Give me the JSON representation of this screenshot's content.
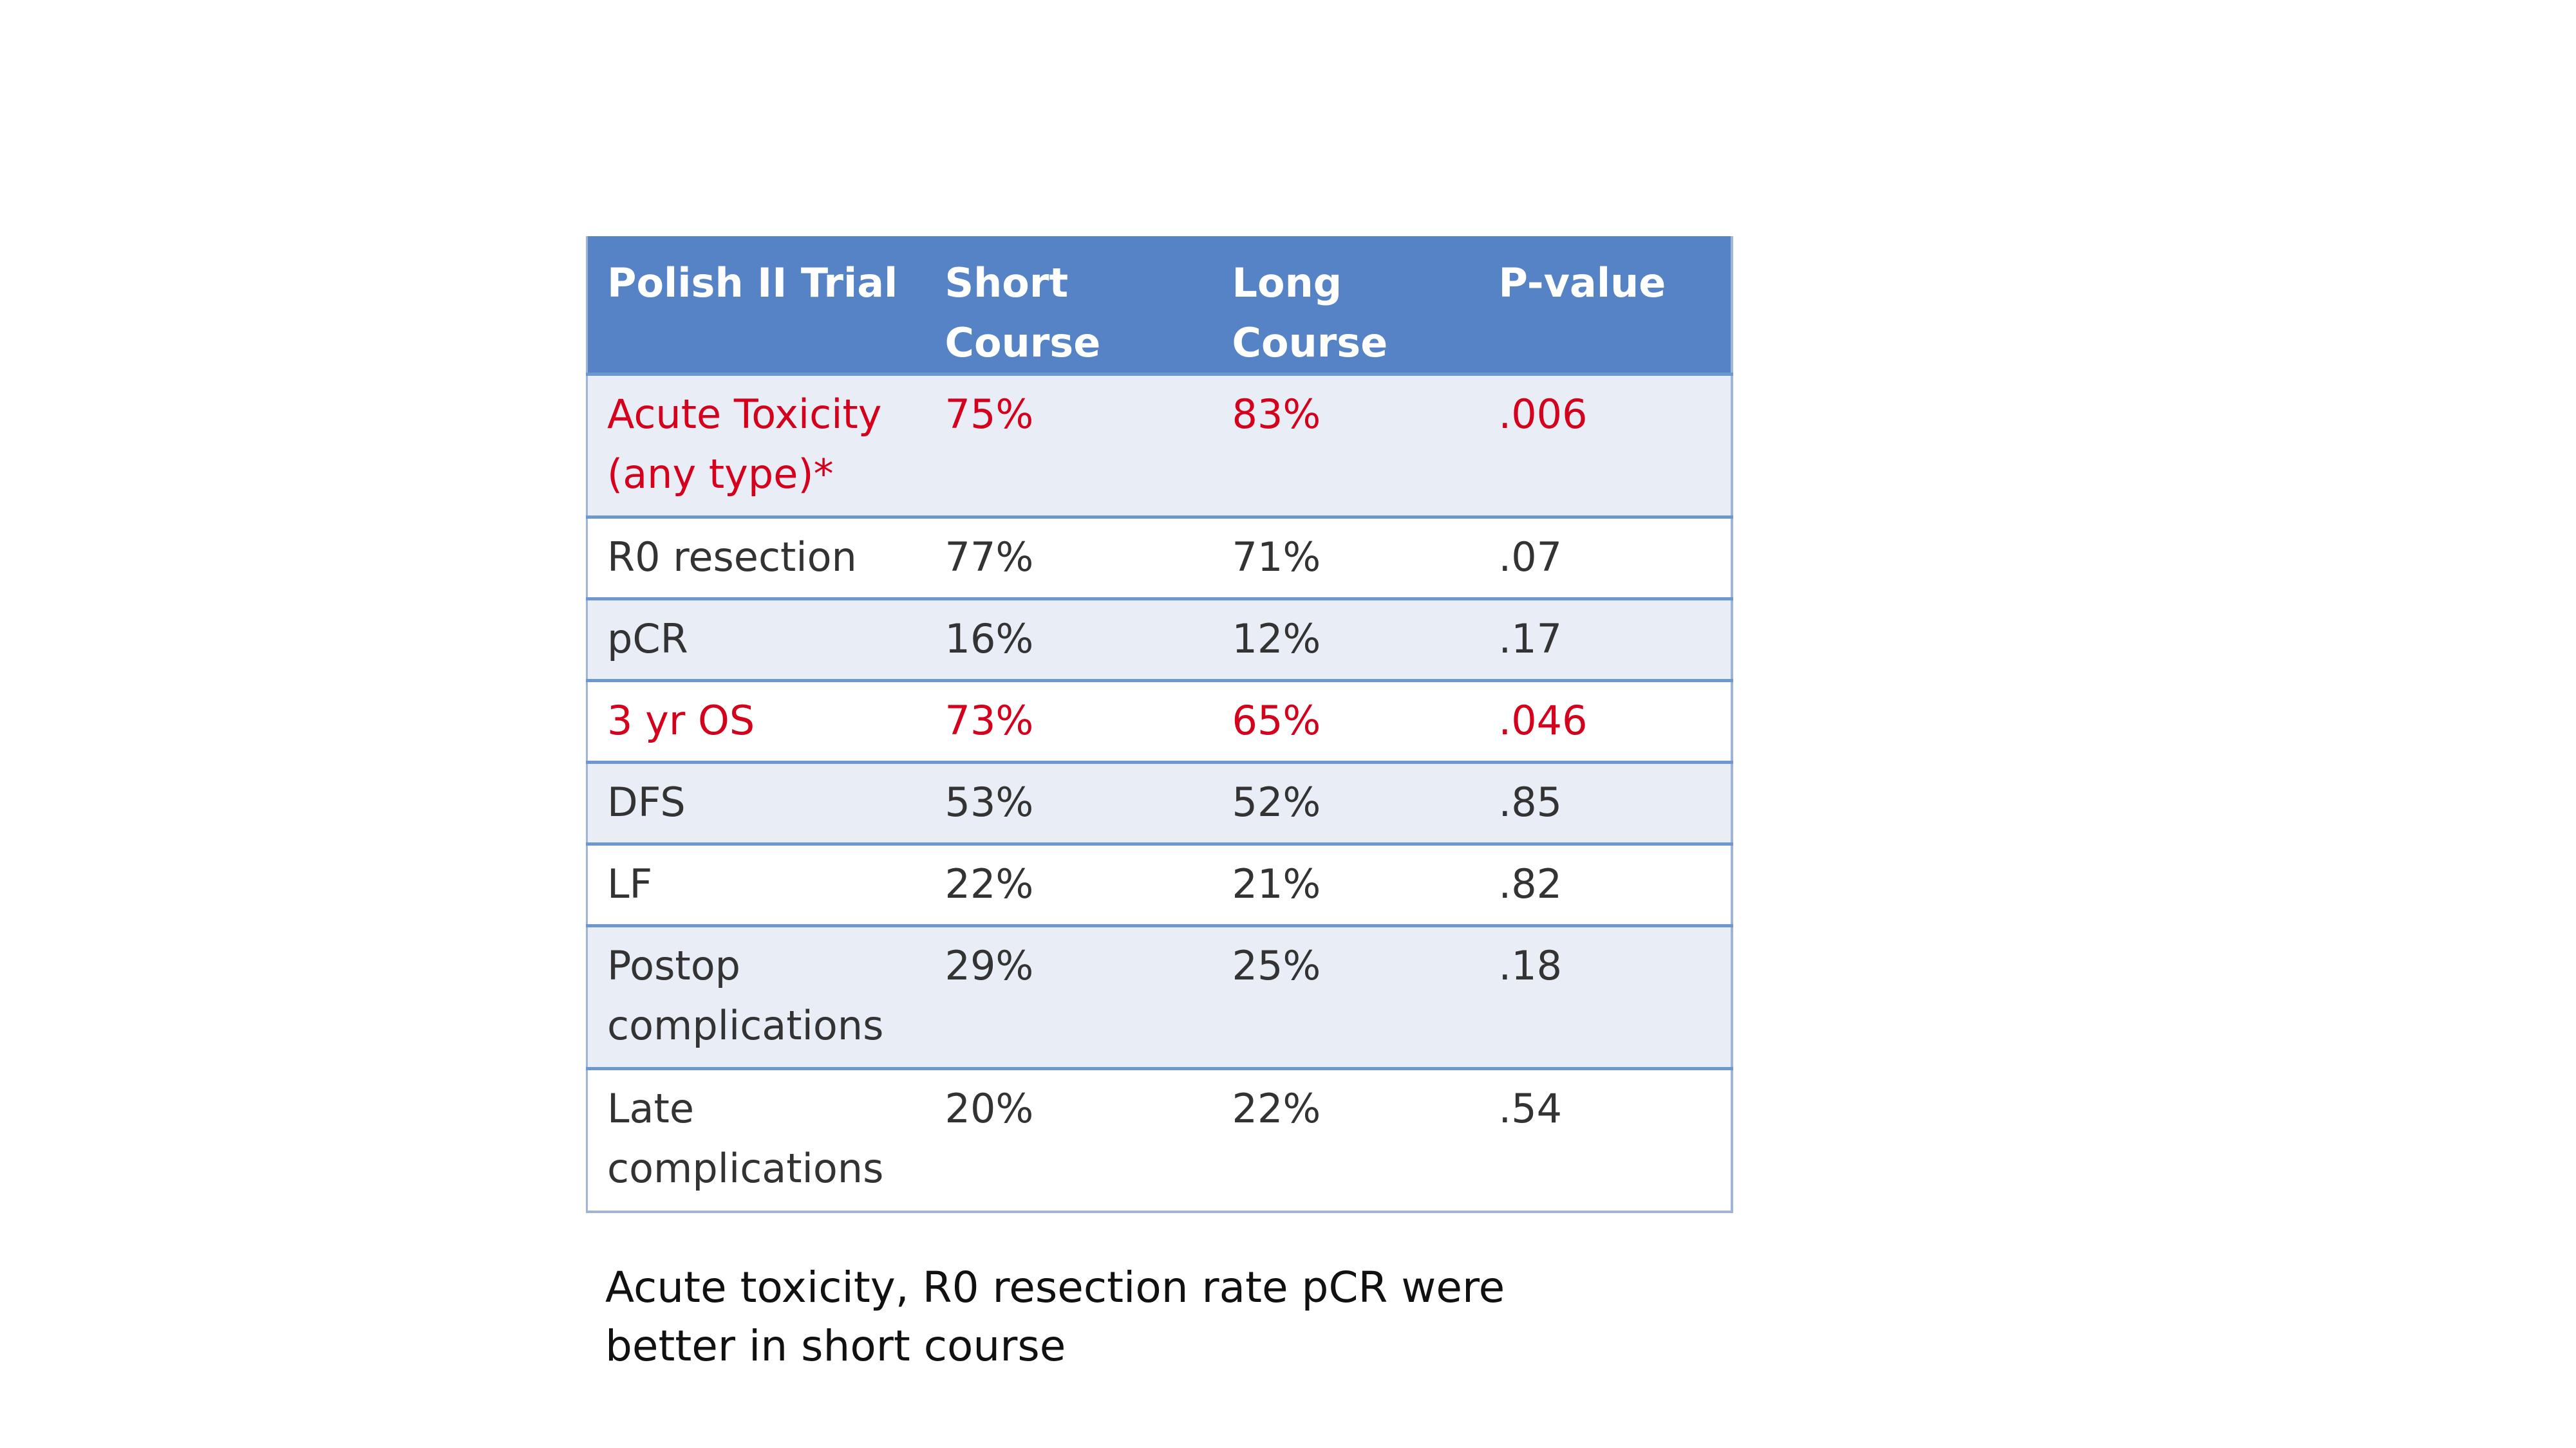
{
  "table": {
    "headers": [
      "Polish II Trial",
      "Short Course",
      "Long Course",
      "P-value"
    ],
    "highlight_color": "#d4001c",
    "header_color": "#5583c5",
    "rows": [
      {
        "cells": [
          "Acute Toxicity (any type)*",
          "75%",
          "83%",
          ".006"
        ],
        "highlight": true
      },
      {
        "cells": [
          "R0 resection",
          "77%",
          "71%",
          ".07"
        ],
        "highlight": false
      },
      {
        "cells": [
          "pCR",
          "16%",
          "12%",
          ".17"
        ],
        "highlight": false
      },
      {
        "cells": [
          "3 yr OS",
          "73%",
          "65%",
          ".046"
        ],
        "highlight": true
      },
      {
        "cells": [
          "DFS",
          "53%",
          "52%",
          ".85"
        ],
        "highlight": false
      },
      {
        "cells": [
          "LF",
          "22%",
          "21%",
          ".82"
        ],
        "highlight": false
      },
      {
        "cells": [
          "Postop complications",
          "29%",
          "25%",
          ".18"
        ],
        "highlight": false
      },
      {
        "cells": [
          "Late complications",
          "20%",
          "22%",
          ".54"
        ],
        "highlight": false
      }
    ]
  },
  "caption": "Acute toxicity, R0 resection rate pCR were better in short course"
}
